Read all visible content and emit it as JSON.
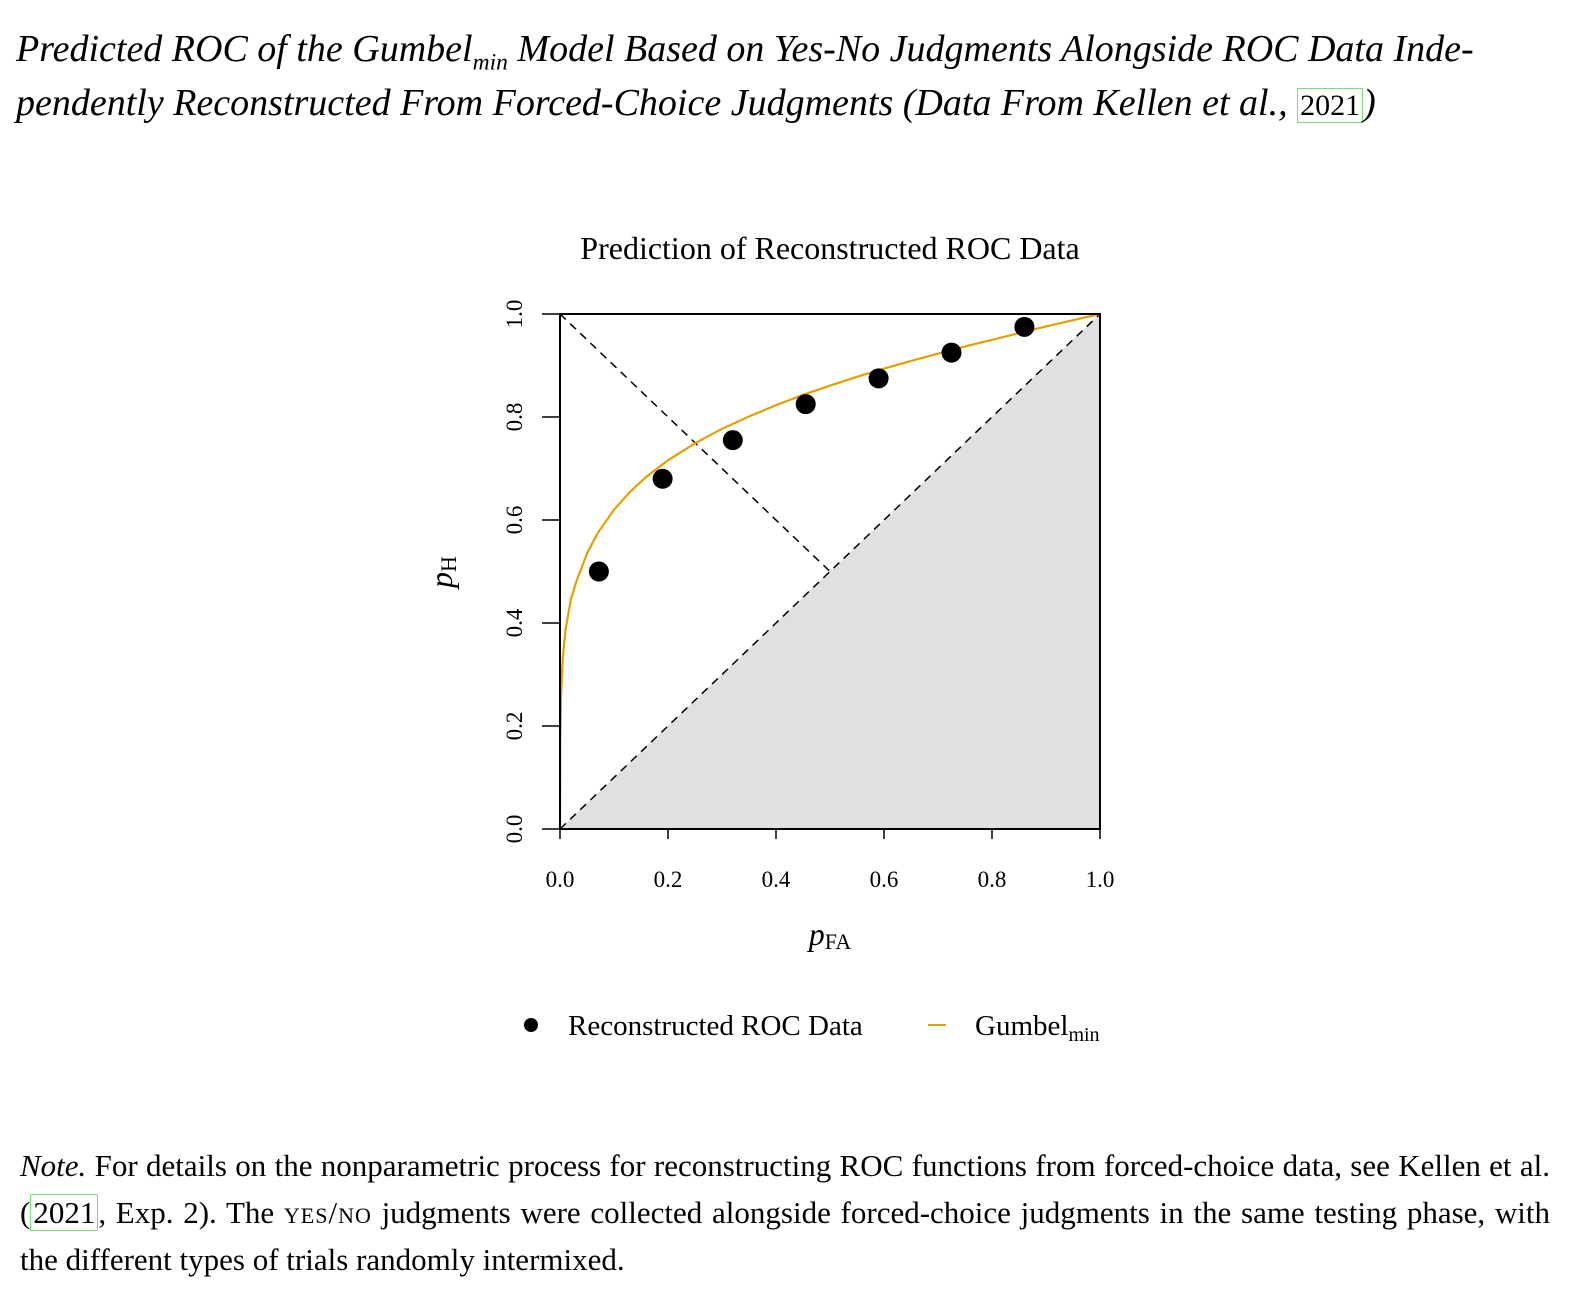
{
  "caption": {
    "part1": "Predicted ROC of the Gumbel",
    "sub": "min",
    "part2": " Model Based on Yes-No Judgments Alongside ROC Data Inde- pendently Reconstructed From Forced-Choice Judgments (Data From Kellen et al., ",
    "cite": "2021",
    "part3": ")"
  },
  "chart_data": {
    "type": "scatter",
    "title": "Prediction of Reconstructed ROC Data",
    "xlabel_main": "p",
    "xlabel_sub": "FA",
    "ylabel_main": "p",
    "ylabel_sub": "H",
    "xlim": [
      0,
      1
    ],
    "ylim": [
      0,
      1
    ],
    "xticks": [
      "0.0",
      "0.2",
      "0.4",
      "0.6",
      "0.8",
      "1.0"
    ],
    "yticks": [
      "0.0",
      "0.2",
      "0.4",
      "0.6",
      "0.8",
      "1.0"
    ],
    "grid": false,
    "points": [
      {
        "x": 0.072,
        "y": 0.5
      },
      {
        "x": 0.19,
        "y": 0.68
      },
      {
        "x": 0.32,
        "y": 0.755
      },
      {
        "x": 0.455,
        "y": 0.825
      },
      {
        "x": 0.59,
        "y": 0.875
      },
      {
        "x": 0.725,
        "y": 0.925
      },
      {
        "x": 0.86,
        "y": 0.975
      }
    ],
    "curve": {
      "model": "gumbel_min",
      "x": [
        0.0,
        0.0005,
        0.002,
        0.005,
        0.01,
        0.02,
        0.03,
        0.05,
        0.07,
        0.1,
        0.13,
        0.16,
        0.2,
        0.25,
        0.3,
        0.35,
        0.4,
        0.45,
        0.5,
        0.55,
        0.6,
        0.65,
        0.7,
        0.75,
        0.8,
        0.85,
        0.9,
        0.95,
        1.0
      ],
      "y": [
        0.0,
        0.18,
        0.26,
        0.33,
        0.385,
        0.445,
        0.48,
        0.535,
        0.575,
        0.62,
        0.655,
        0.684,
        0.716,
        0.749,
        0.777,
        0.801,
        0.823,
        0.843,
        0.861,
        0.878,
        0.894,
        0.909,
        0.923,
        0.937,
        0.95,
        0.963,
        0.976,
        0.988,
        1.0
      ],
      "color": "#e69f00"
    },
    "shaded_region_color": "#e0e0e0",
    "legend_placement": "bottom",
    "legend": [
      {
        "label": "Reconstructed ROC Data",
        "marker": "point"
      },
      {
        "label_main": "Gumbel",
        "label_sub": "min",
        "marker": "line"
      }
    ]
  },
  "note": {
    "label": "Note.",
    "text1": " For details on the nonparametric process for reconstructing ROC functions from forced-choice data, see Kellen et al. (",
    "cite": "2021",
    "text2": ", Exp. 2). The ",
    "smallcaps": "yes/no",
    "text3": " judgments were collected alongside forced-choice judgments in the same testing phase, with the different types of trials randomly intermixed."
  }
}
